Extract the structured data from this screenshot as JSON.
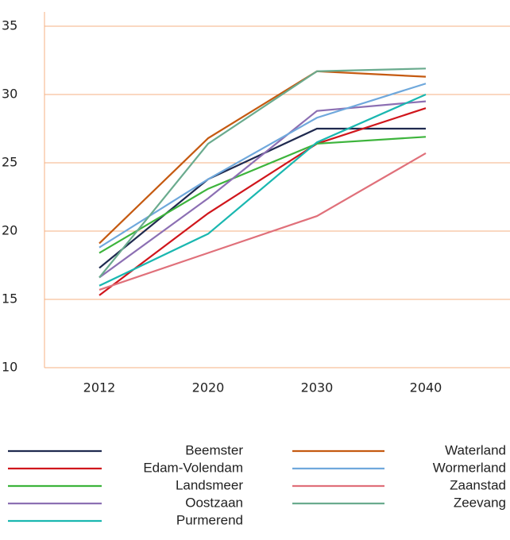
{
  "chart_data": {
    "type": "line",
    "categories": [
      "2012",
      "2020",
      "2030",
      "2040"
    ],
    "ylim": [
      10,
      35
    ],
    "yticks": [
      10,
      15,
      20,
      25,
      30,
      35
    ],
    "grid": true,
    "series": [
      {
        "name": "Beemster",
        "color": "#1f2a4f",
        "values": [
          17.3,
          23.8,
          27.5,
          27.5
        ]
      },
      {
        "name": "Edam-Volendam",
        "color": "#d0161c",
        "values": [
          15.3,
          21.3,
          26.4,
          29.0
        ]
      },
      {
        "name": "Landsmeer",
        "color": "#3db43c",
        "values": [
          18.4,
          23.1,
          26.4,
          26.9
        ]
      },
      {
        "name": "Oostzaan",
        "color": "#8c6fb3",
        "values": [
          16.6,
          22.4,
          28.8,
          29.5
        ]
      },
      {
        "name": "Purmerend",
        "color": "#1ab7b0",
        "values": [
          16.0,
          19.8,
          26.5,
          30.0
        ]
      },
      {
        "name": "Waterland",
        "color": "#c55a11",
        "values": [
          19.1,
          26.8,
          31.7,
          31.3
        ]
      },
      {
        "name": "Wormerland",
        "color": "#6fa8dc",
        "values": [
          18.8,
          23.8,
          28.3,
          30.8
        ]
      },
      {
        "name": "Zaanstad",
        "color": "#e0707a",
        "values": [
          15.7,
          18.4,
          21.1,
          25.7
        ]
      },
      {
        "name": "Zeevang",
        "color": "#6aab8e",
        "values": [
          16.6,
          26.4,
          31.7,
          31.9
        ]
      }
    ]
  }
}
